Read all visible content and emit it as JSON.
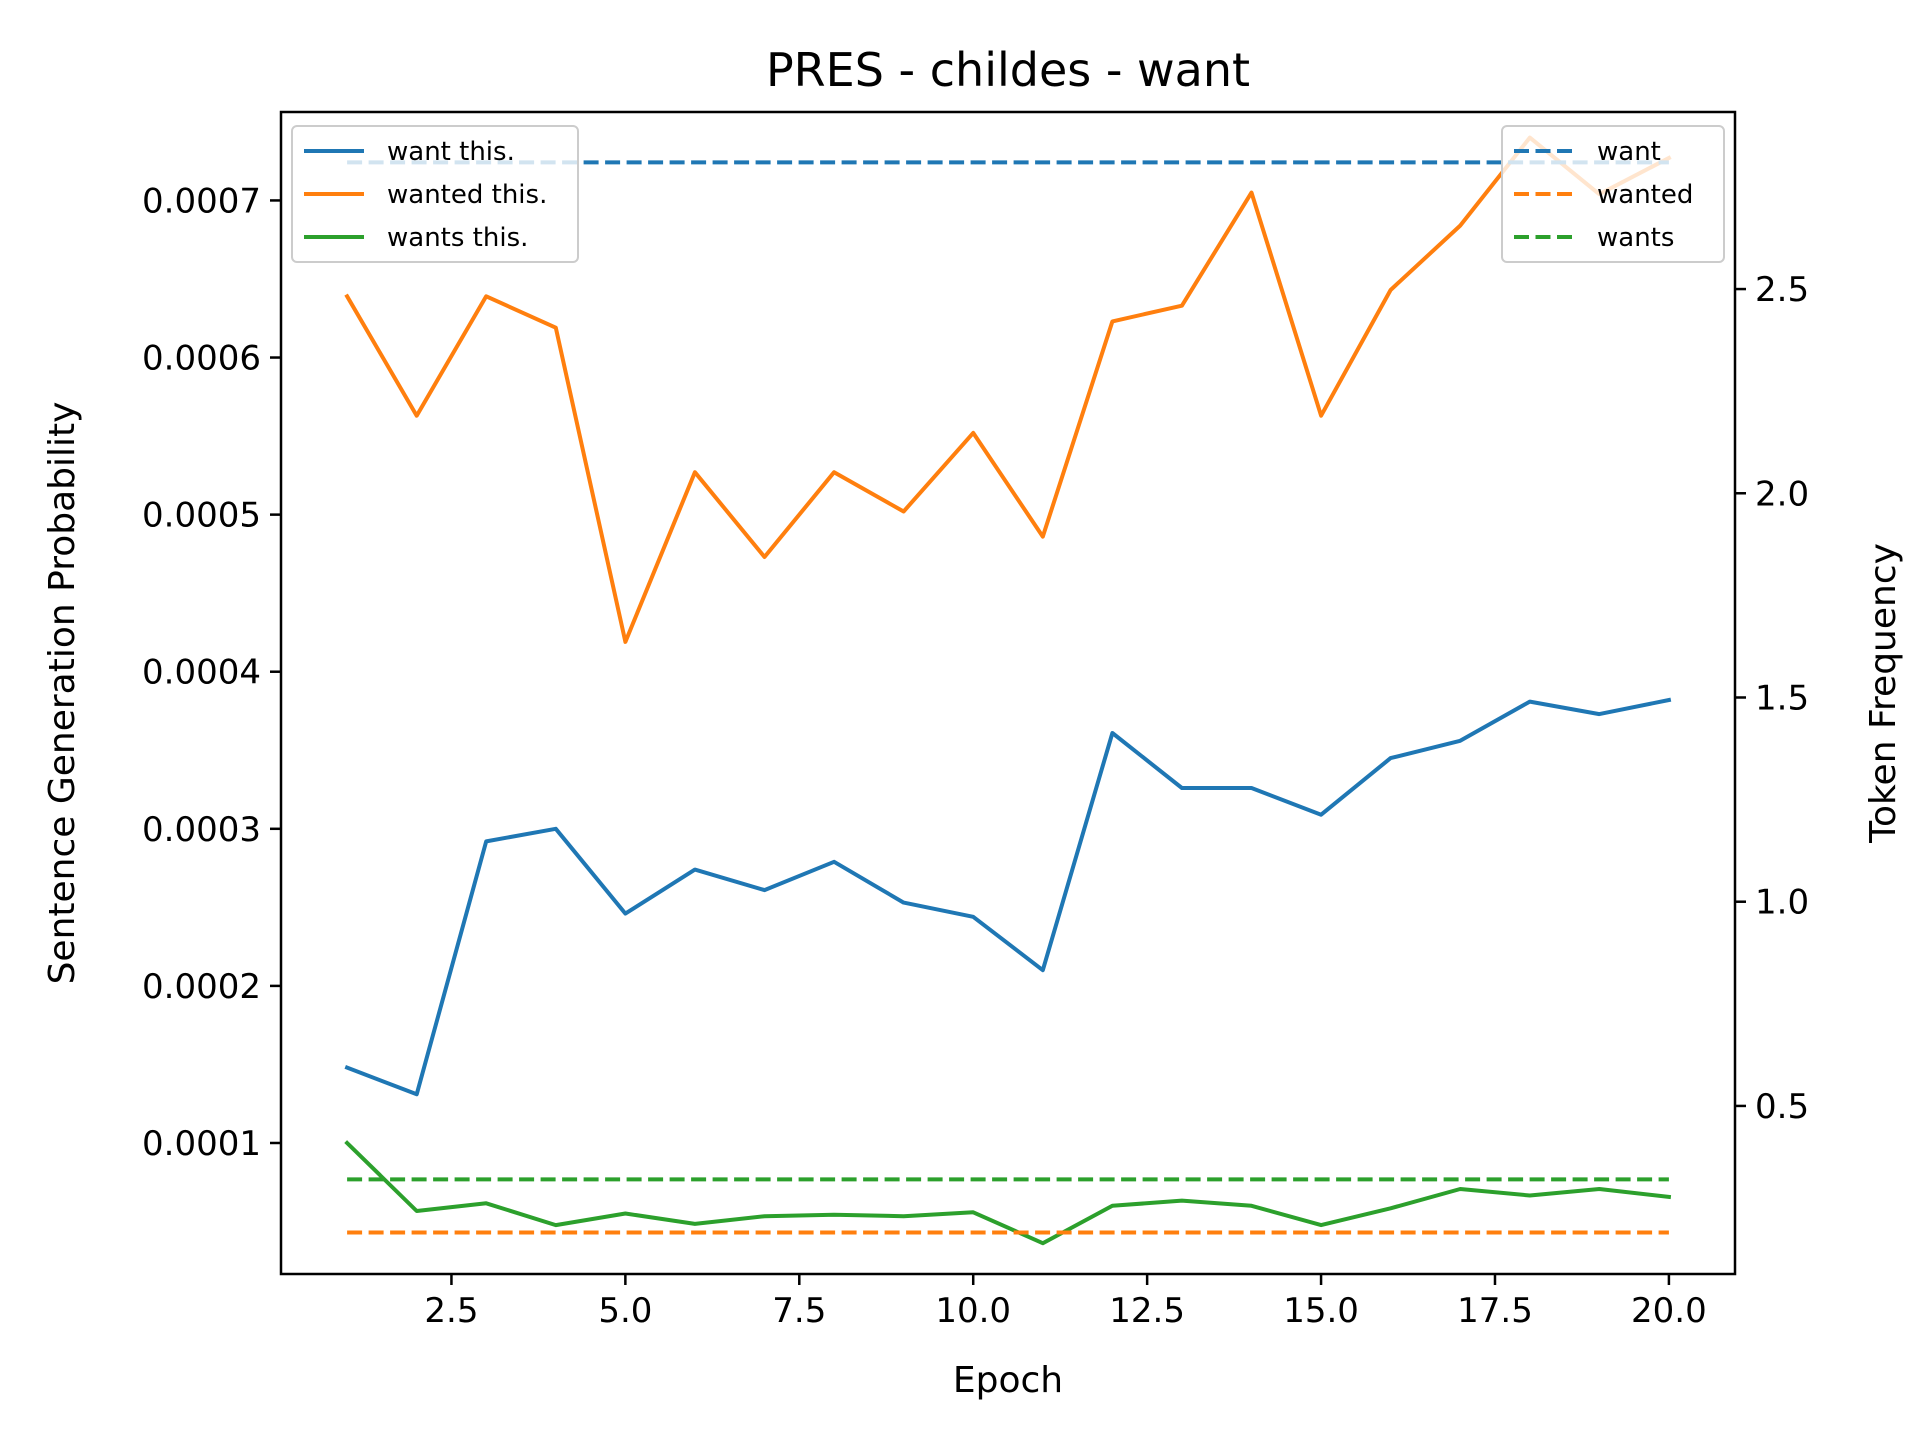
{
  "chart_data": {
    "type": "line",
    "title": "PRES - childes - want",
    "xlabel": "Epoch",
    "ylabel": "Sentence Generation Probability",
    "y2label": "Token Frequency",
    "xlim": [
      0.05,
      20.95
    ],
    "ylim": [
      1.66e-05,
      0.0007563
    ],
    "y2lim": [
      0.0885,
      2.9335
    ],
    "xticks": [
      2.5,
      5.0,
      7.5,
      10.0,
      12.5,
      15.0,
      17.5,
      20.0
    ],
    "xtick_labels": [
      "2.5",
      "5.0",
      "7.5",
      "10.0",
      "12.5",
      "15.0",
      "17.5",
      "20.0"
    ],
    "yticks": [
      0.0001,
      0.0002,
      0.0003,
      0.0004,
      0.0005,
      0.0006,
      0.0007
    ],
    "ytick_labels": [
      "0.0001",
      "0.0002",
      "0.0003",
      "0.0004",
      "0.0005",
      "0.0006",
      "0.0007"
    ],
    "y2ticks": [
      0.5,
      1.0,
      1.5,
      2.0,
      2.5
    ],
    "y2tick_labels": [
      "0.5",
      "1.0",
      "1.5",
      "2.0",
      "2.5"
    ],
    "grid": false,
    "x": [
      1,
      2,
      3,
      4,
      5,
      6,
      7,
      8,
      9,
      10,
      11,
      12,
      13,
      14,
      15,
      16,
      17,
      18,
      19,
      20
    ],
    "series": [
      {
        "name": "want this.",
        "axis": "left",
        "style": "solid",
        "color": "#1f77b4",
        "values": [
          0.000148,
          0.000131,
          0.000292,
          0.0003,
          0.000246,
          0.000274,
          0.000261,
          0.000279,
          0.000253,
          0.000244,
          0.00021,
          0.000361,
          0.000326,
          0.000326,
          0.000309,
          0.000345,
          0.000356,
          0.000381,
          0.000373,
          0.000382
        ]
      },
      {
        "name": "wanted this.",
        "axis": "left",
        "style": "solid",
        "color": "#ff7f0e",
        "values": [
          0.000639,
          0.000563,
          0.000639,
          0.000619,
          0.000419,
          0.000527,
          0.000473,
          0.000527,
          0.000502,
          0.000552,
          0.000486,
          0.000623,
          0.000633,
          0.000705,
          0.000563,
          0.000643,
          0.000684,
          0.00074,
          0.000704,
          0.000727
        ]
      },
      {
        "name": "wants this.",
        "axis": "left",
        "style": "solid",
        "color": "#2ca02c",
        "values": [
          0.0001,
          5.67e-05,
          6.16e-05,
          4.77e-05,
          5.51e-05,
          4.85e-05,
          5.34e-05,
          5.43e-05,
          5.34e-05,
          5.59e-05,
          3.62e-05,
          6e-05,
          6.33e-05,
          6e-05,
          4.77e-05,
          5.84e-05,
          7.07e-05,
          6.66e-05,
          7.07e-05,
          6.57e-05
        ]
      },
      {
        "name": "want",
        "axis": "right",
        "style": "dashed",
        "color": "#1f77b4",
        "values": [
          2.81,
          2.81,
          2.81,
          2.81,
          2.81,
          2.81,
          2.81,
          2.81,
          2.81,
          2.81,
          2.81,
          2.81,
          2.81,
          2.81,
          2.81,
          2.81,
          2.81,
          2.81,
          2.81,
          2.81
        ]
      },
      {
        "name": "wanted",
        "axis": "right",
        "style": "dashed",
        "color": "#ff7f0e",
        "values": [
          0.19,
          0.19,
          0.19,
          0.19,
          0.19,
          0.19,
          0.19,
          0.19,
          0.19,
          0.19,
          0.19,
          0.19,
          0.19,
          0.19,
          0.19,
          0.19,
          0.19,
          0.19,
          0.19,
          0.19
        ]
      },
      {
        "name": "wants",
        "axis": "right",
        "style": "dashed",
        "color": "#2ca02c",
        "values": [
          0.32,
          0.32,
          0.32,
          0.32,
          0.32,
          0.32,
          0.32,
          0.32,
          0.32,
          0.32,
          0.32,
          0.32,
          0.32,
          0.32,
          0.32,
          0.32,
          0.32,
          0.32,
          0.32,
          0.32
        ]
      }
    ],
    "legends": [
      {
        "position": "upper-left",
        "entries": [
          "want this.",
          "wanted this.",
          "wants this."
        ]
      },
      {
        "position": "upper-right",
        "entries": [
          "want",
          "wanted",
          "wants"
        ]
      }
    ]
  }
}
